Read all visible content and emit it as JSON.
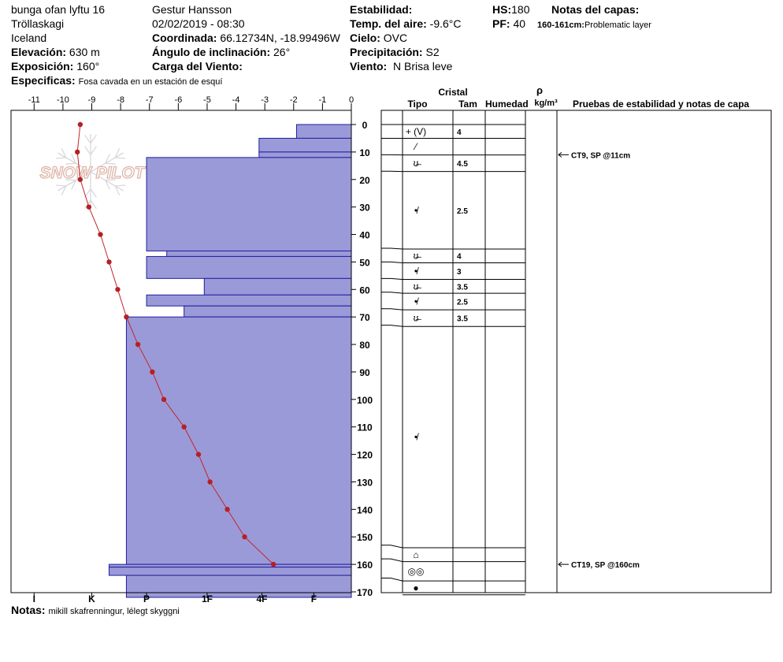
{
  "header": {
    "location": "bunga ofan lyftu 16",
    "region": "Tröllaskagi",
    "country": "Iceland",
    "elevation_label": "Elevación:",
    "elevation_value": "630 m",
    "aspect_label": "Exposición:",
    "aspect_value": "160°",
    "specifics_label": "Especificas:",
    "specifics_value": "Fosa cavada en un estación de esquí",
    "observer": "Gestur Hansson",
    "datetime": "02/02/2019 - 08:30",
    "coord_label": "Coordinada:",
    "coord_value": "66.12734N, -18.99496W",
    "slope_label": "Ángulo de inclinación:",
    "slope_value": "26°",
    "wind_load_label": "Carga del Viento:",
    "wind_load_value": "",
    "stability_label": "Estabilidad:",
    "stability_value": "",
    "air_temp_label": "Temp. del aire:",
    "air_temp_value": "-9.6°C",
    "sky_label": "Cielo:",
    "sky_value": "OVC",
    "precip_label": "Precipitación:",
    "precip_value": "S2",
    "wind_label": "Viento:",
    "wind_value": "N Brisa leve",
    "hs_label": "HS:",
    "hs_value": "180",
    "pf_label": "PF:",
    "pf_value": "40",
    "layer_notes_label": "Notas del capas:",
    "layer_note_depth": "160-161cm:",
    "layer_note_text": "Problematic layer",
    "notes_label": "Notas:",
    "notes_value": "mikill skafrenningur, lélegt skyggni"
  },
  "watermark": "SNOW PILOT",
  "chart_data": {
    "type": "snow_profile",
    "temperature_axis": {
      "ticks": [
        "-11",
        "-10",
        "-9",
        "-8",
        "-7",
        "-6",
        "-5",
        "-4",
        "-3",
        "-2",
        "-1",
        "0"
      ],
      "range": [
        -11.8,
        0
      ]
    },
    "depth_axis": {
      "ticks": [
        "0",
        "10",
        "20",
        "30",
        "40",
        "50",
        "60",
        "70",
        "80",
        "90",
        "100",
        "110",
        "120",
        "130",
        "140",
        "150",
        "160",
        "170"
      ],
      "range": [
        0,
        170
      ]
    },
    "hardness_axis": {
      "ticks": [
        "I",
        "K",
        "P",
        "1F",
        "4F",
        "F"
      ],
      "tick_temps": [
        -11,
        -9,
        -7.1,
        -5,
        -3.1,
        -1.3
      ]
    },
    "hardness_layers": [
      {
        "top": 0,
        "bottom": 5,
        "left_temp": -1.9
      },
      {
        "top": 5,
        "bottom": 10,
        "left_temp": -3.2
      },
      {
        "top": 10,
        "bottom": 12,
        "left_temp": -3.2
      },
      {
        "top": 12,
        "bottom": 46,
        "left_temp": -7.1
      },
      {
        "top": 46,
        "bottom": 48,
        "left_temp": -6.4
      },
      {
        "top": 48,
        "bottom": 56,
        "left_temp": -7.1
      },
      {
        "top": 56,
        "bottom": 62,
        "left_temp": -5.1
      },
      {
        "top": 62,
        "bottom": 66,
        "left_temp": -7.1
      },
      {
        "top": 66,
        "bottom": 70,
        "left_temp": -5.8
      },
      {
        "top": 70,
        "bottom": 160,
        "left_temp": -7.8
      },
      {
        "top": 160,
        "bottom": 161,
        "left_temp": -8.4
      },
      {
        "top": 161,
        "bottom": 164,
        "left_temp": -8.4
      },
      {
        "top": 164,
        "bottom": 172,
        "left_temp": -7.8
      }
    ],
    "temperature_profile": [
      {
        "depth": 0,
        "temp": -9.4
      },
      {
        "depth": 10,
        "temp": -9.5
      },
      {
        "depth": 20,
        "temp": -9.4
      },
      {
        "depth": 30,
        "temp": -9.1
      },
      {
        "depth": 40,
        "temp": -8.7
      },
      {
        "depth": 50,
        "temp": -8.4
      },
      {
        "depth": 60,
        "temp": -8.1
      },
      {
        "depth": 70,
        "temp": -7.8
      },
      {
        "depth": 80,
        "temp": -7.4
      },
      {
        "depth": 90,
        "temp": -6.9
      },
      {
        "depth": 100,
        "temp": -6.5
      },
      {
        "depth": 110,
        "temp": -5.8
      },
      {
        "depth": 120,
        "temp": -5.3
      },
      {
        "depth": 130,
        "temp": -4.9
      },
      {
        "depth": 140,
        "temp": -4.3
      },
      {
        "depth": 150,
        "temp": -3.7
      },
      {
        "depth": 160,
        "temp": -2.7
      }
    ],
    "table_headers": {
      "crystal": "Cristal",
      "type": "Tipo",
      "size": "Tam",
      "moisture": "Humedad",
      "rho_symbol": "ρ",
      "density_unit": "kg/m³",
      "stability_notes": "Pruebas de estabilidad y notas de capa"
    },
    "strata": [
      {
        "top": 0,
        "bottom": 5,
        "symbol": "+ (V)",
        "size": "4"
      },
      {
        "top": 5,
        "bottom": 11,
        "symbol": "⁄",
        "size": ""
      },
      {
        "top": 11,
        "bottom": 17,
        "symbol": "ʊ̶",
        "size": "4.5"
      },
      {
        "top": 17,
        "bottom": 45,
        "symbol": "•̸",
        "size": "2.5"
      },
      {
        "top": 45,
        "bottom": 50,
        "symbol": "ʊ̶",
        "size": "4"
      },
      {
        "top": 50,
        "bottom": 56,
        "symbol": "•̸",
        "size": "3"
      },
      {
        "top": 56,
        "bottom": 61,
        "symbol": "ʊ̶",
        "size": "3.5"
      },
      {
        "top": 61,
        "bottom": 67,
        "symbol": "•̸",
        "size": "2.5"
      },
      {
        "top": 67,
        "bottom": 73,
        "symbol": "ʊ̶",
        "size": "3.5"
      },
      {
        "top": 73,
        "bottom": 153,
        "symbol": "•̸",
        "size": ""
      },
      {
        "top": 153,
        "bottom": 158,
        "symbol": "⌂",
        "size": ""
      },
      {
        "top": 158,
        "bottom": 165,
        "symbol": "◎◎",
        "size": ""
      },
      {
        "top": 165,
        "bottom": 170,
        "symbol": "●",
        "size": ""
      }
    ],
    "test_notes": [
      {
        "depth": 11,
        "text": "CT9, SP @11cm"
      },
      {
        "depth": 160,
        "text": "CT19, SP @160cm"
      }
    ]
  }
}
